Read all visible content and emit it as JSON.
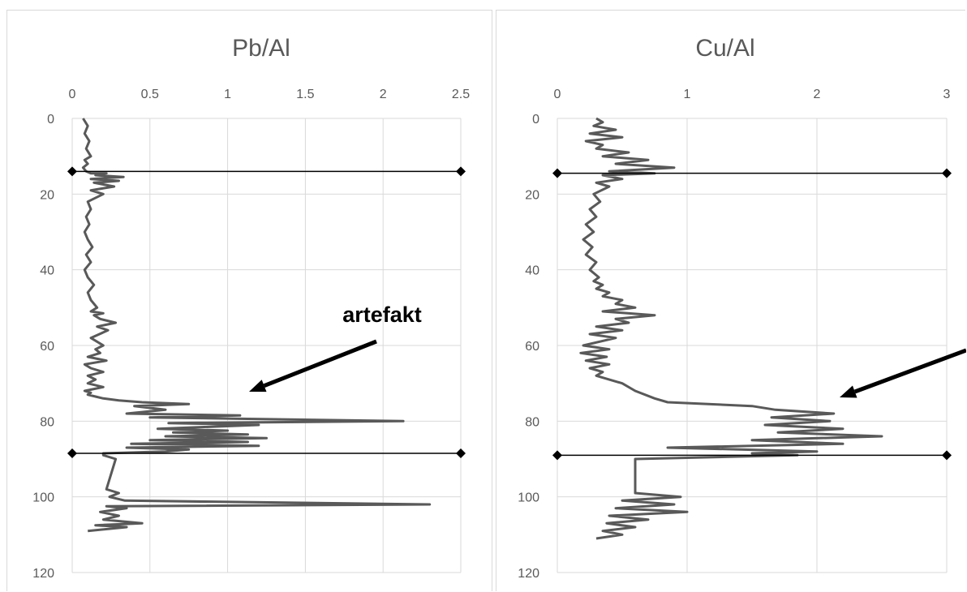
{
  "chart_data": [
    {
      "type": "line",
      "title": "Pb/Al",
      "x_axis_position": "top",
      "y_axis_inverted": true,
      "xlim": [
        0,
        2.5
      ],
      "ylim": [
        0,
        120
      ],
      "x_ticks": [
        "0",
        "0.5",
        "1",
        "1.5",
        "2",
        "2.5"
      ],
      "y_ticks": [
        "0",
        "20",
        "40",
        "60",
        "80",
        "100",
        "120"
      ],
      "grid": true,
      "line_color": "#595959",
      "annotation": "artefakt",
      "horizontal_markers": [
        14,
        88.5
      ],
      "series": [
        {
          "x": [
            0.07,
            0.1,
            0.08,
            0.11,
            0.09,
            0.12,
            0.08,
            0.1,
            0.07,
            0.09,
            0.12,
            0.22,
            0.15,
            0.33,
            0.12,
            0.3,
            0.14,
            0.27,
            0.12,
            0.2,
            0.1,
            0.12,
            0.09,
            0.11,
            0.08,
            0.1,
            0.13,
            0.09,
            0.12,
            0.08,
            0.1,
            0.14,
            0.1,
            0.12,
            0.16,
            0.12,
            0.2,
            0.14,
            0.18,
            0.28,
            0.16,
            0.23,
            0.12,
            0.2,
            0.15,
            0.18,
            0.1,
            0.22,
            0.08,
            0.12,
            0.2,
            0.1,
            0.15,
            0.1,
            0.2,
            0.08,
            0.12,
            0.1,
            0.15,
            0.2,
            0.3,
            0.45,
            0.75,
            0.4,
            0.6,
            0.35,
            1.08,
            0.5,
            2.13,
            0.62,
            1.2,
            0.55,
            1.0,
            0.65,
            1.13,
            0.6,
            1.25,
            0.5,
            1.13,
            0.38,
            1.2,
            0.35,
            0.75,
            0.6,
            0.2,
            0.2,
            0.28,
            0.22,
            0.3,
            0.24,
            0.34,
            2.3,
            0.22,
            0.35,
            0.18,
            0.3,
            0.2,
            0.45,
            0.15,
            0.35,
            0.1
          ],
          "y": [
            0,
            2,
            4,
            6,
            8,
            10,
            11,
            12,
            13,
            14,
            14.5,
            14.5,
            15,
            15.5,
            16,
            16.5,
            17,
            18,
            19,
            20,
            22,
            24,
            26,
            28,
            30,
            32,
            34,
            36,
            38,
            40,
            42,
            44,
            46,
            48,
            50,
            51,
            51.5,
            52,
            53,
            54,
            55,
            56,
            58,
            60,
            61,
            62,
            63,
            64,
            65,
            66,
            67,
            68,
            69,
            70,
            71,
            72,
            72.5,
            73,
            73.5,
            74,
            74.5,
            75,
            75.5,
            76,
            77,
            78,
            78.5,
            79,
            80,
            80.5,
            81,
            82,
            82.5,
            83,
            83.5,
            84,
            84.5,
            85,
            85.5,
            86,
            86.5,
            87,
            87.5,
            88,
            88.5,
            89,
            90,
            98,
            99,
            100,
            101,
            102,
            102.5,
            103,
            104,
            105,
            106,
            107,
            107.5,
            108,
            109
          ]
        }
      ]
    },
    {
      "type": "line",
      "title": "Cu/Al",
      "x_axis_position": "top",
      "y_axis_inverted": true,
      "xlim": [
        0,
        3
      ],
      "ylim": [
        0,
        120
      ],
      "x_ticks": [
        "0",
        "1",
        "2",
        "3"
      ],
      "y_ticks": [
        "0",
        "20",
        "40",
        "60",
        "80",
        "100",
        "120"
      ],
      "grid": true,
      "line_color": "#595959",
      "horizontal_markers": [
        14.5,
        89
      ],
      "series": [
        {
          "x": [
            0.3,
            0.35,
            0.28,
            0.45,
            0.25,
            0.5,
            0.22,
            0.35,
            0.3,
            0.55,
            0.35,
            0.7,
            0.45,
            0.9,
            0.4,
            0.75,
            0.35,
            0.5,
            0.3,
            0.4,
            0.28,
            0.33,
            0.25,
            0.3,
            0.22,
            0.28,
            0.2,
            0.27,
            0.22,
            0.3,
            0.25,
            0.32,
            0.28,
            0.35,
            0.3,
            0.4,
            0.35,
            0.5,
            0.45,
            0.6,
            0.35,
            0.75,
            0.45,
            0.55,
            0.3,
            0.5,
            0.25,
            0.45,
            0.2,
            0.4,
            0.18,
            0.38,
            0.22,
            0.4,
            0.25,
            0.35,
            0.3,
            0.5,
            0.6,
            0.75,
            0.85,
            1.5,
            1.68,
            2.13,
            1.65,
            2.1,
            1.6,
            2.2,
            1.7,
            2.5,
            1.5,
            2.2,
            0.85,
            2.0,
            1.5,
            1.85,
            0.6,
            0.6,
            0.6,
            0.95,
            0.5,
            0.9,
            0.45,
            1.0,
            0.4,
            0.7,
            0.38,
            0.6,
            0.35,
            0.5,
            0.3
          ],
          "y": [
            0,
            1,
            2,
            3,
            4,
            5,
            6,
            7,
            8,
            9,
            10,
            11,
            12,
            13,
            14,
            14.5,
            15,
            16,
            17,
            18,
            20,
            22,
            24,
            26,
            28,
            30,
            32,
            34,
            36,
            38,
            40,
            42,
            43,
            44,
            45,
            46,
            47,
            48,
            49,
            50,
            51,
            52,
            53,
            54,
            55,
            56,
            57,
            58,
            60,
            61,
            62,
            63,
            64,
            65,
            66,
            67,
            68,
            70,
            72,
            74,
            75,
            76,
            77,
            78,
            79,
            80,
            81,
            82,
            83,
            84,
            85,
            86,
            87,
            88,
            88.5,
            89,
            90,
            98,
            99,
            100,
            101,
            102,
            103,
            104,
            105,
            106,
            107,
            108,
            109,
            110,
            111
          ]
        }
      ]
    }
  ]
}
